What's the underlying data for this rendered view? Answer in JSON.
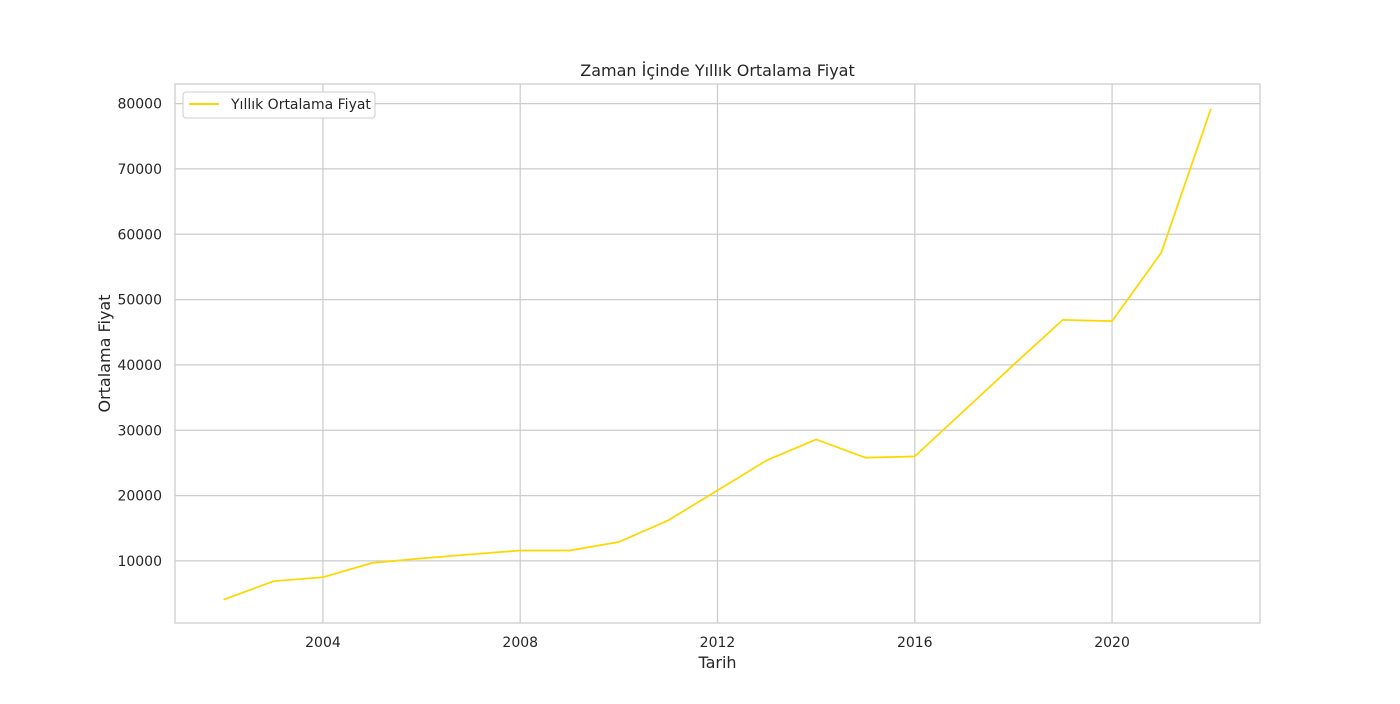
{
  "chart_data": {
    "type": "line",
    "title": "Zaman İçinde Yıllık Ortalama Fiyat",
    "xlabel": "Tarih",
    "ylabel": "Ortalama Fiyat",
    "x_ticks": [
      "2004",
      "2008",
      "2012",
      "2016",
      "2020"
    ],
    "y_ticks": [
      10000,
      20000,
      30000,
      40000,
      50000,
      60000,
      70000,
      80000
    ],
    "xlim": [
      2001.0,
      2023.0
    ],
    "ylim": [
      500,
      83000
    ],
    "grid": true,
    "legend_position": "top-left",
    "series": [
      {
        "name": "Yıllık Ortalama Fiyat",
        "color": "#FFD700",
        "x": [
          2002,
          2003,
          2004,
          2005,
          2006,
          2007,
          2008,
          2009,
          2010,
          2011,
          2012,
          2013,
          2014,
          2015,
          2016,
          2017,
          2018,
          2019,
          2020,
          2021,
          2022
        ],
        "y": [
          4100,
          6900,
          7500,
          9700,
          10400,
          11000,
          11600,
          11600,
          12900,
          16200,
          20800,
          25400,
          28600,
          25800,
          26000,
          33000,
          40000,
          46900,
          46700,
          57200,
          79100
        ]
      }
    ]
  }
}
